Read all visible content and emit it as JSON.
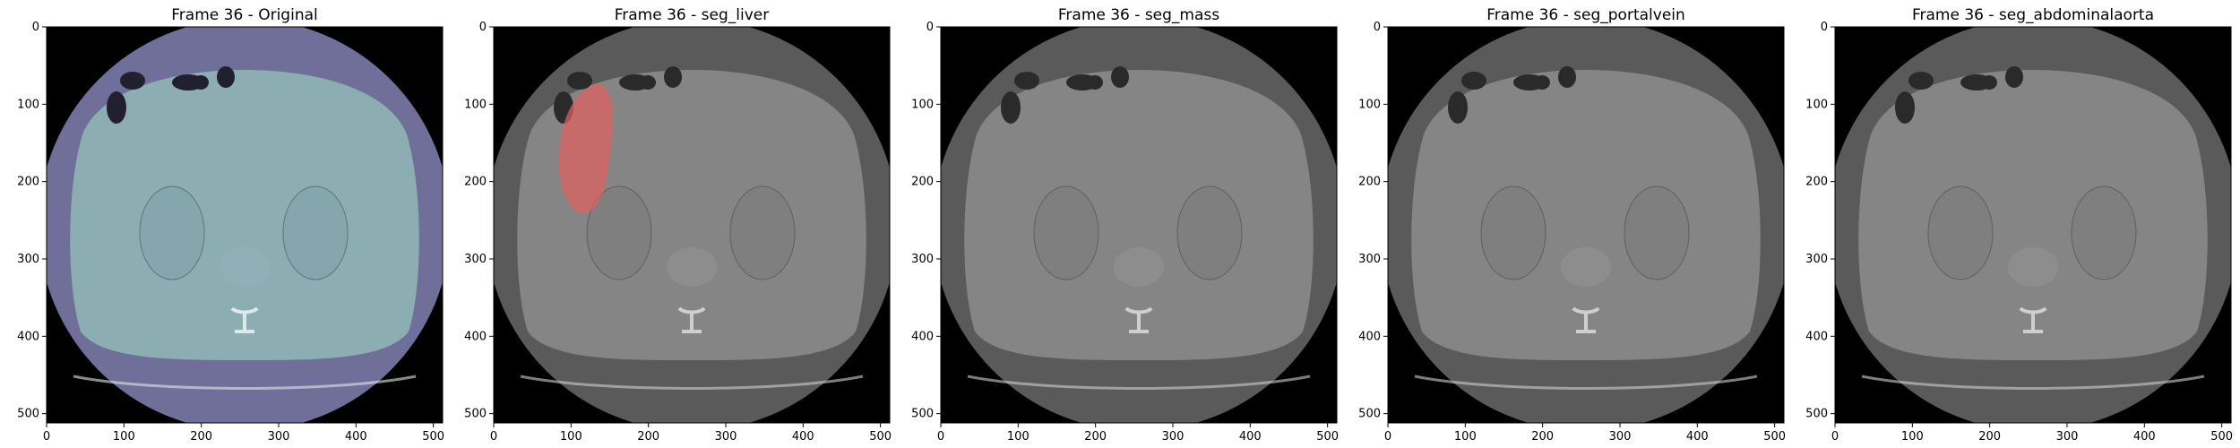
{
  "figure": {
    "panels": [
      {
        "title": "Frame 36 - Original",
        "overlay": "none"
      },
      {
        "title": "Frame 36 - seg_liver",
        "overlay": "liver"
      },
      {
        "title": "Frame 36 - seg_mass",
        "overlay": "none"
      },
      {
        "title": "Frame 36 - seg_portalvein",
        "overlay": "none"
      },
      {
        "title": "Frame 36 - seg_abdominalaorta",
        "overlay": "none"
      }
    ],
    "axis": {
      "x_ticks": [
        "0",
        "100",
        "200",
        "300",
        "400",
        "500"
      ],
      "y_ticks": [
        "0",
        "100",
        "200",
        "300",
        "400",
        "500"
      ],
      "x_range": [
        0,
        512
      ],
      "y_range": [
        0,
        512
      ]
    },
    "colors": {
      "background": "#000000",
      "original_tint": "#6f6f9a",
      "original_body": "#8fb4b4",
      "gray_outer": "#5a5a5a",
      "gray_body": "#8a8a8a",
      "liver_overlay": "#e06060"
    }
  }
}
